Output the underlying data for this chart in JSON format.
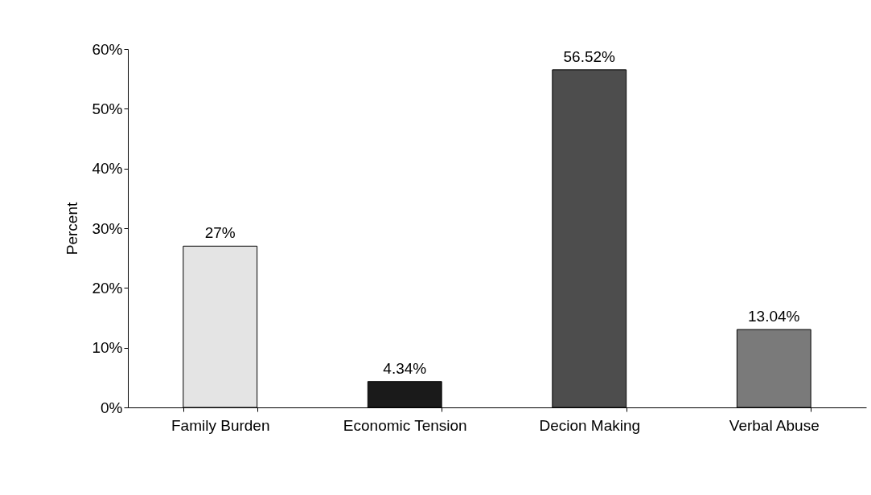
{
  "chart_data": {
    "type": "bar",
    "ylabel": "Percent",
    "categories": [
      "Family Burden",
      "Economic Tension",
      "Decion Making",
      "Verbal Abuse"
    ],
    "values": [
      27,
      4.34,
      56.52,
      13.04
    ],
    "colors": [
      "#e4e4e4",
      "#1a1a1a",
      "#4d4d4d",
      "#7a7a7a"
    ],
    "value_labels": [
      "27%",
      "4.34%",
      "56.52%",
      "13.04%"
    ],
    "ylim": [
      0,
      60
    ],
    "yticks": [
      {
        "value": 0,
        "label": "0%"
      },
      {
        "value": 10,
        "label": "10%"
      },
      {
        "value": 20,
        "label": "20%"
      },
      {
        "value": 30,
        "label": "30%"
      },
      {
        "value": 40,
        "label": "40%"
      },
      {
        "value": 50,
        "label": "50%"
      },
      {
        "value": 60,
        "label": "60%"
      }
    ],
    "grid": false
  }
}
